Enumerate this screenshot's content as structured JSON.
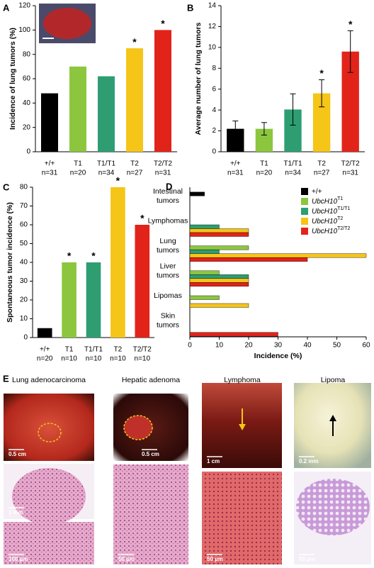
{
  "panel_labels": [
    "A",
    "B",
    "C",
    "D",
    "E"
  ],
  "chart_data": [
    {
      "type": "bar",
      "ylabel": "Incidence of lung tumors (%)",
      "categories": [
        "+/+",
        "T1",
        "T1/T1",
        "T2",
        "T2/T2"
      ],
      "sample_sizes": [
        "n=31",
        "n=20",
        "n=34",
        "n=27",
        "n=31"
      ],
      "values": [
        48,
        70,
        62,
        85,
        100
      ],
      "colors": [
        "#000000",
        "#8cc63f",
        "#2e9e72",
        "#f5c518",
        "#e2231a"
      ],
      "significance": [
        null,
        null,
        null,
        "*",
        "*"
      ],
      "ylim": [
        0,
        120
      ],
      "yticks": [
        0,
        20,
        40,
        60,
        80,
        100,
        120
      ]
    },
    {
      "type": "bar",
      "ylabel": "Average number of lung tumors",
      "categories": [
        "+/+",
        "T1",
        "T1/T1",
        "T2",
        "T2/T2"
      ],
      "sample_sizes": [
        "n=31",
        "n=20",
        "n=34",
        "n=27",
        "n=31"
      ],
      "values": [
        2.2,
        2.2,
        4.05,
        5.6,
        9.6
      ],
      "errors": [
        0.75,
        0.6,
        1.5,
        1.3,
        2.0
      ],
      "colors": [
        "#000000",
        "#8cc63f",
        "#2e9e72",
        "#f5c518",
        "#e2231a"
      ],
      "significance": [
        null,
        null,
        null,
        "*",
        "*"
      ],
      "ylim": [
        0,
        14
      ],
      "yticks": [
        0,
        2,
        4,
        6,
        8,
        10,
        12,
        14
      ]
    },
    {
      "type": "bar",
      "ylabel": "Spontaneous tumor incidence (%)",
      "categories": [
        "+/+",
        "T1",
        "T1/T1",
        "T2",
        "T2/T2"
      ],
      "sample_sizes": [
        "n=20",
        "n=10",
        "n=10",
        "n=10",
        "n=10"
      ],
      "values": [
        5,
        40,
        40,
        80,
        60
      ],
      "colors": [
        "#000000",
        "#8cc63f",
        "#2e9e72",
        "#f5c518",
        "#e2231a"
      ],
      "significance": [
        null,
        "*",
        "*",
        "*",
        "*"
      ],
      "ylim": [
        0,
        80
      ],
      "yticks": [
        0,
        10,
        20,
        30,
        40,
        50,
        60,
        70,
        80
      ]
    },
    {
      "type": "hbar",
      "xlabel": "Incidence (%)",
      "categories": [
        [
          "Intestinal",
          "tumors"
        ],
        [
          "Lymphomas"
        ],
        [
          "Lung",
          "tumors"
        ],
        [
          "Liver",
          "tumors"
        ],
        [
          "Lipomas"
        ],
        [
          "Skin",
          "tumors"
        ]
      ],
      "series": [
        {
          "name": "+/+",
          "color": "#000000",
          "values": [
            5,
            0,
            0,
            0,
            0,
            0
          ]
        },
        {
          "name": "UbcH10",
          "name_sup": "T1",
          "color": "#8cc63f",
          "values": [
            0,
            0,
            20,
            10,
            10,
            0
          ]
        },
        {
          "name": "UbcH10",
          "name_sup": "T1/T1",
          "color": "#2e9e72",
          "values": [
            0,
            10,
            10,
            20,
            0,
            0
          ]
        },
        {
          "name": "UbcH10",
          "name_sup": "T2",
          "color": "#f5c518",
          "values": [
            0,
            20,
            60,
            20,
            20,
            0
          ]
        },
        {
          "name": "UbcH10",
          "name_sup": "T2/T2",
          "color": "#e2231a",
          "values": [
            0,
            20,
            40,
            20,
            0,
            30
          ]
        }
      ],
      "xlim": [
        0,
        60
      ],
      "xticks": [
        0,
        10,
        20,
        30,
        40,
        50,
        60
      ]
    }
  ],
  "panel_e": {
    "columns": [
      {
        "title": "Lung adenocarcinoma",
        "scale_bars": [
          "0.5 cm",
          "1 mm",
          "100 µm"
        ]
      },
      {
        "title": "Hepatic adenoma",
        "scale_bars": [
          "0.5 cm",
          "50 µm"
        ]
      },
      {
        "title": "Lymphoma",
        "scale_bars": [
          "1 cm",
          "50 µm"
        ]
      },
      {
        "title": "Lipoma",
        "scale_bars": [
          "0.2 mm",
          "50 µm"
        ]
      }
    ]
  }
}
